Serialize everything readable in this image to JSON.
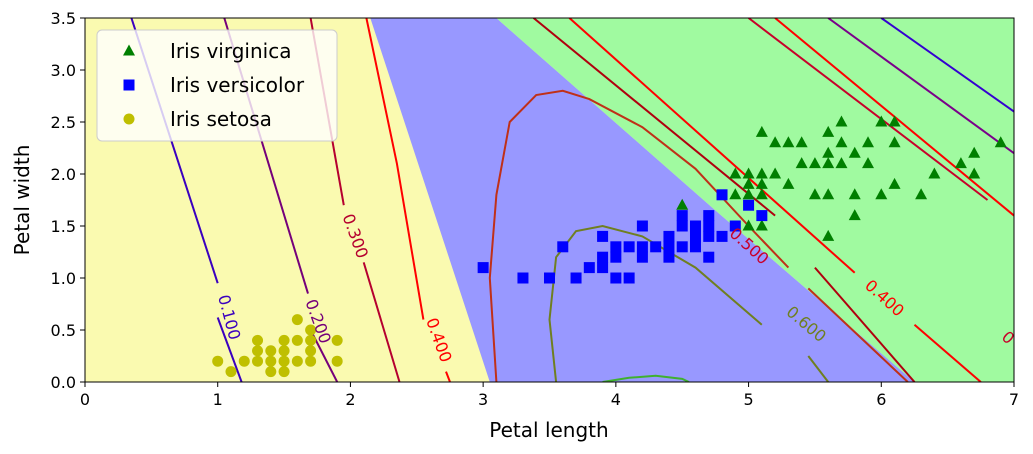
{
  "chart_data": {
    "type": "scatter",
    "title": "",
    "xlabel": "Petal length",
    "ylabel": "Petal width",
    "xlim": [
      0,
      7
    ],
    "ylim": [
      0,
      3.5
    ],
    "x_ticks": [
      "0",
      "1",
      "2",
      "3",
      "4",
      "5",
      "6",
      "7"
    ],
    "y_ticks": [
      "0.0",
      "0.5",
      "1.0",
      "1.5",
      "2.0",
      "2.5",
      "3.0",
      "3.5"
    ],
    "legend_position": "top-left",
    "regions": [
      {
        "class": "Iris setosa",
        "color": "#fafab0"
      },
      {
        "class": "Iris versicolor",
        "color": "#9898ff"
      },
      {
        "class": "Iris virginica",
        "color": "#a0faa0"
      }
    ],
    "series": [
      {
        "name": "Iris virginica",
        "marker": "triangle",
        "color": "#007f00",
        "points": [
          [
            4.9,
            2.0
          ],
          [
            5.0,
            2.0
          ],
          [
            5.1,
            2.0
          ],
          [
            5.2,
            2.0
          ],
          [
            5.3,
            1.9
          ],
          [
            5.4,
            2.1
          ],
          [
            5.5,
            2.1
          ],
          [
            5.6,
            2.1
          ],
          [
            5.7,
            2.1
          ],
          [
            5.6,
            2.2
          ],
          [
            5.8,
            2.2
          ],
          [
            5.9,
            2.1
          ],
          [
            6.0,
            2.5
          ],
          [
            6.1,
            2.5
          ],
          [
            5.1,
            2.4
          ],
          [
            5.2,
            2.3
          ],
          [
            5.3,
            2.3
          ],
          [
            5.4,
            2.3
          ],
          [
            5.6,
            2.4
          ],
          [
            5.7,
            2.5
          ],
          [
            5.8,
            1.8
          ],
          [
            5.6,
            1.8
          ],
          [
            5.5,
            1.8
          ],
          [
            5.1,
            1.8
          ],
          [
            4.9,
            1.8
          ],
          [
            5.0,
            1.9
          ],
          [
            5.1,
            1.9
          ],
          [
            5.7,
            2.3
          ],
          [
            6.1,
            2.3
          ],
          [
            6.3,
            1.8
          ],
          [
            6.4,
            2.0
          ],
          [
            6.6,
            2.1
          ],
          [
            6.7,
            2.2
          ],
          [
            6.7,
            2.0
          ],
          [
            6.9,
            2.3
          ],
          [
            5.8,
            1.6
          ],
          [
            5.6,
            1.4
          ],
          [
            4.5,
            1.7
          ],
          [
            5.0,
            1.5
          ],
          [
            5.1,
            1.5
          ],
          [
            6.0,
            1.8
          ],
          [
            6.1,
            1.9
          ],
          [
            5.9,
            2.3
          ],
          [
            5.0,
            1.8
          ]
        ]
      },
      {
        "name": "Iris versicolor",
        "marker": "square",
        "color": "#0000ff",
        "points": [
          [
            3.0,
            1.1
          ],
          [
            3.3,
            1.0
          ],
          [
            3.5,
            1.0
          ],
          [
            3.6,
            1.3
          ],
          [
            3.7,
            1.0
          ],
          [
            3.8,
            1.1
          ],
          [
            3.9,
            1.1
          ],
          [
            3.9,
            1.2
          ],
          [
            3.9,
            1.4
          ],
          [
            4.0,
            1.0
          ],
          [
            4.0,
            1.2
          ],
          [
            4.0,
            1.3
          ],
          [
            4.1,
            1.0
          ],
          [
            4.1,
            1.3
          ],
          [
            4.2,
            1.2
          ],
          [
            4.2,
            1.3
          ],
          [
            4.2,
            1.5
          ],
          [
            4.3,
            1.3
          ],
          [
            4.4,
            1.2
          ],
          [
            4.4,
            1.3
          ],
          [
            4.4,
            1.4
          ],
          [
            4.5,
            1.3
          ],
          [
            4.5,
            1.5
          ],
          [
            4.5,
            1.6
          ],
          [
            4.6,
            1.3
          ],
          [
            4.6,
            1.4
          ],
          [
            4.6,
            1.5
          ],
          [
            4.7,
            1.2
          ],
          [
            4.7,
            1.4
          ],
          [
            4.7,
            1.5
          ],
          [
            4.7,
            1.6
          ],
          [
            4.8,
            1.4
          ],
          [
            4.8,
            1.8
          ],
          [
            4.9,
            1.5
          ],
          [
            5.0,
            1.7
          ],
          [
            5.1,
            1.6
          ]
        ]
      },
      {
        "name": "Iris setosa",
        "marker": "circle",
        "color": "#bfbf00",
        "points": [
          [
            1.0,
            0.2
          ],
          [
            1.1,
            0.1
          ],
          [
            1.2,
            0.2
          ],
          [
            1.3,
            0.2
          ],
          [
            1.3,
            0.3
          ],
          [
            1.3,
            0.4
          ],
          [
            1.4,
            0.1
          ],
          [
            1.4,
            0.2
          ],
          [
            1.4,
            0.3
          ],
          [
            1.5,
            0.1
          ],
          [
            1.5,
            0.2
          ],
          [
            1.5,
            0.3
          ],
          [
            1.5,
            0.4
          ],
          [
            1.6,
            0.2
          ],
          [
            1.6,
            0.4
          ],
          [
            1.6,
            0.6
          ],
          [
            1.7,
            0.2
          ],
          [
            1.7,
            0.3
          ],
          [
            1.7,
            0.4
          ],
          [
            1.7,
            0.5
          ],
          [
            1.9,
            0.2
          ],
          [
            1.9,
            0.4
          ]
        ]
      }
    ],
    "contour_labels": [
      "0.100",
      "0.200",
      "0.300",
      "0.400",
      "0.500",
      "0.600",
      "0.400",
      "0"
    ]
  }
}
